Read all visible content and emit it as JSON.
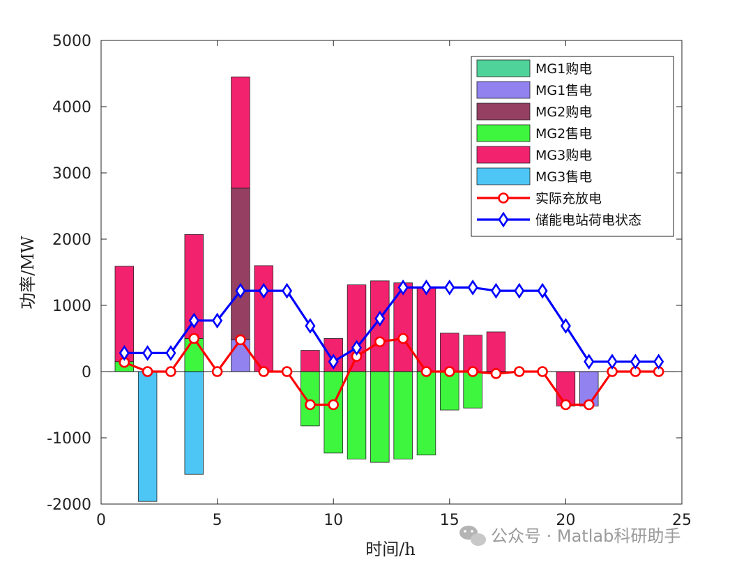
{
  "chart_data": {
    "type": "bar",
    "xlabel": "时间/h",
    "ylabel": "功率/MW",
    "xlim": [
      0,
      25
    ],
    "ylim": [
      -2000,
      5000
    ],
    "xticks": [
      0,
      5,
      10,
      15,
      20,
      25
    ],
    "yticks": [
      -2000,
      -1000,
      0,
      1000,
      2000,
      3000,
      4000,
      5000
    ],
    "legend_position": "top-right",
    "stacked": true,
    "bar_series": [
      {
        "name": "MG1购电",
        "color": "#4fd39a",
        "values": [
          [
            1,
            0
          ],
          [
            2,
            0
          ],
          [
            3,
            0
          ],
          [
            4,
            0
          ],
          [
            5,
            0
          ],
          [
            6,
            0
          ],
          [
            7,
            0
          ],
          [
            8,
            0
          ],
          [
            9,
            0
          ],
          [
            10,
            0
          ],
          [
            11,
            0
          ],
          [
            12,
            0
          ],
          [
            13,
            0
          ],
          [
            14,
            0
          ],
          [
            15,
            0
          ],
          [
            16,
            0
          ],
          [
            17,
            0
          ],
          [
            18,
            0
          ],
          [
            19,
            0
          ],
          [
            20,
            0
          ],
          [
            21,
            0
          ],
          [
            22,
            0
          ],
          [
            23,
            0
          ],
          [
            24,
            0
          ]
        ]
      },
      {
        "name": "MG1售电",
        "color": "#9182f0",
        "values": [
          [
            1,
            0
          ],
          [
            2,
            0
          ],
          [
            3,
            0
          ],
          [
            4,
            0
          ],
          [
            5,
            0
          ],
          [
            6,
            480
          ],
          [
            7,
            0
          ],
          [
            8,
            0
          ],
          [
            9,
            0
          ],
          [
            10,
            0
          ],
          [
            11,
            0
          ],
          [
            12,
            0
          ],
          [
            13,
            0
          ],
          [
            14,
            0
          ],
          [
            15,
            0
          ],
          [
            16,
            0
          ],
          [
            17,
            0
          ],
          [
            18,
            0
          ],
          [
            19,
            0
          ],
          [
            20,
            0
          ],
          [
            21,
            -520
          ],
          [
            22,
            0
          ],
          [
            23,
            0
          ],
          [
            24,
            0
          ]
        ]
      },
      {
        "name": "MG2购电",
        "color": "#953f62",
        "values": [
          [
            1,
            0
          ],
          [
            2,
            0
          ],
          [
            3,
            0
          ],
          [
            4,
            0
          ],
          [
            5,
            0
          ],
          [
            6,
            2290
          ],
          [
            7,
            0
          ],
          [
            8,
            0
          ],
          [
            9,
            0
          ],
          [
            10,
            0
          ],
          [
            11,
            0
          ],
          [
            12,
            0
          ],
          [
            13,
            0
          ],
          [
            14,
            0
          ],
          [
            15,
            0
          ],
          [
            16,
            0
          ],
          [
            17,
            0
          ],
          [
            18,
            0
          ],
          [
            19,
            0
          ],
          [
            20,
            0
          ],
          [
            21,
            0
          ],
          [
            22,
            0
          ],
          [
            23,
            0
          ],
          [
            24,
            0
          ]
        ]
      },
      {
        "name": "MG2售电",
        "color": "#3ef63e",
        "values": [
          [
            1,
            150
          ],
          [
            2,
            0
          ],
          [
            3,
            0
          ],
          [
            4,
            500
          ],
          [
            5,
            0
          ],
          [
            6,
            0
          ],
          [
            7,
            0
          ],
          [
            8,
            0
          ],
          [
            9,
            -820
          ],
          [
            10,
            -1230
          ],
          [
            11,
            -1320
          ],
          [
            12,
            -1370
          ],
          [
            13,
            -1320
          ],
          [
            14,
            -1260
          ],
          [
            15,
            -580
          ],
          [
            16,
            -550
          ],
          [
            17,
            0
          ],
          [
            18,
            0
          ],
          [
            19,
            0
          ],
          [
            20,
            0
          ],
          [
            21,
            0
          ],
          [
            22,
            0
          ],
          [
            23,
            0
          ],
          [
            24,
            0
          ]
        ]
      },
      {
        "name": "MG3购电",
        "color": "#f2226e",
        "values": [
          [
            1,
            1440
          ],
          [
            2,
            0
          ],
          [
            3,
            0
          ],
          [
            4,
            1570
          ],
          [
            5,
            0
          ],
          [
            6,
            1680
          ],
          [
            7,
            1600
          ],
          [
            8,
            0
          ],
          [
            9,
            320
          ],
          [
            10,
            500
          ],
          [
            11,
            1310
          ],
          [
            12,
            1370
          ],
          [
            13,
            1340
          ],
          [
            14,
            1260
          ],
          [
            15,
            580
          ],
          [
            16,
            550
          ],
          [
            17,
            600
          ],
          [
            18,
            0
          ],
          [
            19,
            0
          ],
          [
            20,
            -520
          ],
          [
            21,
            0
          ],
          [
            22,
            0
          ],
          [
            23,
            0
          ],
          [
            24,
            0
          ]
        ]
      },
      {
        "name": "MG3售电",
        "color": "#4dc6f6",
        "values": [
          [
            1,
            0
          ],
          [
            2,
            -1960
          ],
          [
            3,
            0
          ],
          [
            4,
            -1550
          ],
          [
            5,
            0
          ],
          [
            6,
            0
          ],
          [
            7,
            0
          ],
          [
            8,
            0
          ],
          [
            9,
            0
          ],
          [
            10,
            0
          ],
          [
            11,
            0
          ],
          [
            12,
            0
          ],
          [
            13,
            0
          ],
          [
            14,
            0
          ],
          [
            15,
            0
          ],
          [
            16,
            0
          ],
          [
            17,
            0
          ],
          [
            18,
            0
          ],
          [
            19,
            0
          ],
          [
            20,
            0
          ],
          [
            21,
            0
          ],
          [
            22,
            0
          ],
          [
            23,
            0
          ],
          [
            24,
            0
          ]
        ]
      }
    ],
    "line_series": [
      {
        "name": "实际充放电",
        "color": "#ff0000",
        "marker": "circle",
        "x": [
          1,
          2,
          3,
          4,
          5,
          6,
          7,
          8,
          9,
          10,
          11,
          12,
          13,
          14,
          15,
          16,
          17,
          18,
          19,
          20,
          21,
          22,
          23,
          24
        ],
        "y": [
          140,
          0,
          0,
          500,
          0,
          480,
          0,
          0,
          -500,
          -500,
          230,
          450,
          500,
          0,
          0,
          0,
          -30,
          0,
          0,
          -500,
          -500,
          0,
          0,
          0
        ]
      },
      {
        "name": "储能电站荷电状态",
        "color": "#0000ff",
        "marker": "diamond",
        "x": [
          1,
          2,
          3,
          4,
          5,
          6,
          7,
          8,
          9,
          10,
          11,
          12,
          13,
          14,
          15,
          16,
          17,
          18,
          19,
          20,
          21,
          22,
          23,
          24
        ],
        "y": [
          280,
          280,
          280,
          770,
          770,
          1220,
          1220,
          1220,
          690,
          150,
          360,
          800,
          1270,
          1270,
          1270,
          1270,
          1220,
          1220,
          1220,
          690,
          150,
          150,
          150,
          150
        ]
      }
    ]
  },
  "watermark": "公众号 · Matlab科研助手"
}
